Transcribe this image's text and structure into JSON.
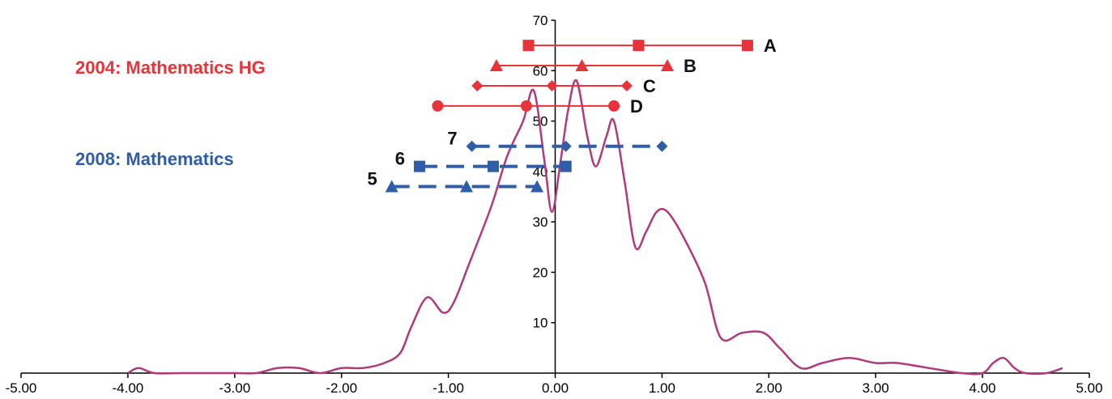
{
  "chart_data": {
    "type": "line",
    "xlim": [
      -5,
      5
    ],
    "ylim": [
      0,
      70
    ],
    "x_ticks": [
      "-5.00",
      "-4.00",
      "-3.00",
      "-2.00",
      "-1.00",
      "0.00",
      "1.00",
      "2.00",
      "3.00",
      "4.00",
      "5.00"
    ],
    "y_ticks": [
      "10",
      "20",
      "30",
      "40",
      "50",
      "60",
      "70"
    ],
    "grid": false,
    "curve": {
      "color": "#b03a7e",
      "points": [
        [
          -4.0,
          0
        ],
        [
          -3.9,
          1
        ],
        [
          -3.75,
          0
        ],
        [
          -3.5,
          0
        ],
        [
          -3.0,
          0
        ],
        [
          -2.8,
          0
        ],
        [
          -2.6,
          1
        ],
        [
          -2.4,
          1
        ],
        [
          -2.2,
          0
        ],
        [
          -2.0,
          1
        ],
        [
          -1.8,
          1
        ],
        [
          -1.6,
          2
        ],
        [
          -1.45,
          4
        ],
        [
          -1.35,
          9
        ],
        [
          -1.2,
          15
        ],
        [
          -1.05,
          12
        ],
        [
          -0.95,
          14
        ],
        [
          -0.8,
          22
        ],
        [
          -0.6,
          33
        ],
        [
          -0.45,
          43
        ],
        [
          -0.3,
          50
        ],
        [
          -0.2,
          56
        ],
        [
          -0.1,
          42
        ],
        [
          -0.03,
          32
        ],
        [
          0.05,
          42
        ],
        [
          0.12,
          52
        ],
        [
          0.2,
          58
        ],
        [
          0.3,
          47
        ],
        [
          0.38,
          41
        ],
        [
          0.48,
          47
        ],
        [
          0.55,
          50
        ],
        [
          0.65,
          38
        ],
        [
          0.75,
          25
        ],
        [
          0.85,
          28
        ],
        [
          0.95,
          32
        ],
        [
          1.05,
          32
        ],
        [
          1.2,
          27
        ],
        [
          1.4,
          18
        ],
        [
          1.55,
          7
        ],
        [
          1.75,
          8
        ],
        [
          1.95,
          8
        ],
        [
          2.1,
          5
        ],
        [
          2.3,
          1
        ],
        [
          2.5,
          2
        ],
        [
          2.75,
          3
        ],
        [
          3.0,
          2
        ],
        [
          3.2,
          2
        ],
        [
          3.5,
          1
        ],
        [
          3.8,
          0
        ],
        [
          4.0,
          0
        ],
        [
          4.1,
          2
        ],
        [
          4.2,
          3
        ],
        [
          4.3,
          1
        ],
        [
          4.4,
          0
        ],
        [
          4.6,
          0
        ],
        [
          4.75,
          1
        ]
      ]
    },
    "series": [
      {
        "name": "A",
        "group": "2004",
        "y": 65,
        "points": [
          -0.25,
          0.78,
          1.8
        ],
        "marker": "square",
        "style": "solid"
      },
      {
        "name": "B",
        "group": "2004",
        "y": 61,
        "points": [
          -0.55,
          0.25,
          1.05
        ],
        "marker": "triangle",
        "style": "solid"
      },
      {
        "name": "C",
        "group": "2004",
        "y": 57,
        "points": [
          -0.73,
          -0.03,
          0.67
        ],
        "marker": "diamond",
        "style": "solid"
      },
      {
        "name": "D",
        "group": "2004",
        "y": 53,
        "points": [
          -1.1,
          -0.27,
          0.55
        ],
        "marker": "circle",
        "style": "solid"
      },
      {
        "name": "7",
        "group": "2008",
        "y": 45,
        "points": [
          -0.78,
          0.1,
          1.0
        ],
        "marker": "diamond",
        "style": "dashed"
      },
      {
        "name": "6",
        "group": "2008",
        "y": 41,
        "points": [
          -1.27,
          -0.58,
          0.1
        ],
        "marker": "square",
        "style": "dashed"
      },
      {
        "name": "5",
        "group": "2008",
        "y": 37,
        "points": [
          -1.53,
          -0.83,
          -0.17
        ],
        "marker": "triangle",
        "style": "dashed"
      }
    ],
    "groups": [
      {
        "id": "2004",
        "title": "2004: Mathematics HG",
        "color": "#e8333a"
      },
      {
        "id": "2008",
        "title": "2008: Mathematics",
        "color": "#2f5da8"
      }
    ]
  }
}
